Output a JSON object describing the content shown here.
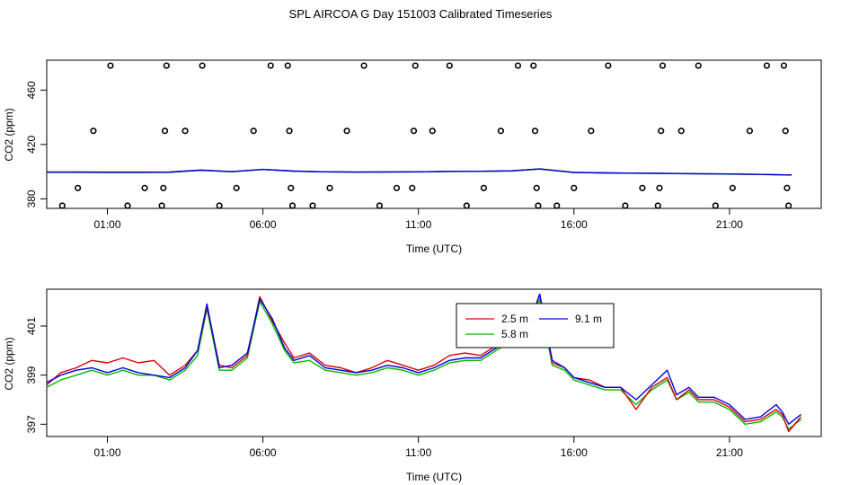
{
  "page": {
    "title": "SPL AIRCOA G  Day 151003  Calibrated Timeseries"
  },
  "chart_data": [
    {
      "type": "scatter",
      "title": "",
      "xlabel": "Time (UTC)",
      "ylabel": "CO2 (ppm)",
      "xlim": [
        -0.95,
        23.95
      ],
      "ylim": [
        373,
        482
      ],
      "x_ticks": [
        1,
        6,
        11,
        16,
        21
      ],
      "x_tick_labels": [
        "01:00",
        "06:00",
        "11:00",
        "16:00",
        "21:00"
      ],
      "y_ticks": [
        380,
        420,
        460
      ],
      "y_tick_labels": [
        "380",
        "420",
        "460"
      ],
      "colors": {
        "points": "#000000",
        "line_red": "#dd0000",
        "line_green": "#00bb00",
        "line_blue": "#0000dd"
      },
      "calibration_points": [
        {
          "x": -0.45,
          "y": 375
        },
        {
          "x": 0.05,
          "y": 388
        },
        {
          "x": 0.55,
          "y": 430
        },
        {
          "x": 1.1,
          "y": 478
        },
        {
          "x": 1.65,
          "y": 375
        },
        {
          "x": 2.2,
          "y": 388
        },
        {
          "x": 2.75,
          "y": 375
        },
        {
          "x": 2.8,
          "y": 388
        },
        {
          "x": 2.85,
          "y": 430
        },
        {
          "x": 2.9,
          "y": 478
        },
        {
          "x": 3.5,
          "y": 430
        },
        {
          "x": 4.05,
          "y": 478
        },
        {
          "x": 4.6,
          "y": 375
        },
        {
          "x": 5.15,
          "y": 388
        },
        {
          "x": 5.7,
          "y": 430
        },
        {
          "x": 6.25,
          "y": 478
        },
        {
          "x": 6.8,
          "y": 478
        },
        {
          "x": 6.85,
          "y": 430
        },
        {
          "x": 6.9,
          "y": 388
        },
        {
          "x": 6.95,
          "y": 375
        },
        {
          "x": 7.6,
          "y": 375
        },
        {
          "x": 8.15,
          "y": 388
        },
        {
          "x": 8.7,
          "y": 430
        },
        {
          "x": 9.25,
          "y": 478
        },
        {
          "x": 9.75,
          "y": 375
        },
        {
          "x": 10.3,
          "y": 388
        },
        {
          "x": 10.8,
          "y": 388
        },
        {
          "x": 10.85,
          "y": 430
        },
        {
          "x": 10.9,
          "y": 478
        },
        {
          "x": 11.45,
          "y": 430
        },
        {
          "x": 12.0,
          "y": 478
        },
        {
          "x": 12.55,
          "y": 375
        },
        {
          "x": 13.1,
          "y": 388
        },
        {
          "x": 13.65,
          "y": 430
        },
        {
          "x": 14.2,
          "y": 478
        },
        {
          "x": 14.7,
          "y": 478
        },
        {
          "x": 14.75,
          "y": 430
        },
        {
          "x": 14.8,
          "y": 388
        },
        {
          "x": 14.85,
          "y": 375
        },
        {
          "x": 15.45,
          "y": 375
        },
        {
          "x": 16.0,
          "y": 388
        },
        {
          "x": 16.55,
          "y": 430
        },
        {
          "x": 17.1,
          "y": 478
        },
        {
          "x": 17.65,
          "y": 375
        },
        {
          "x": 18.2,
          "y": 388
        },
        {
          "x": 18.7,
          "y": 375
        },
        {
          "x": 18.75,
          "y": 388
        },
        {
          "x": 18.8,
          "y": 430
        },
        {
          "x": 18.85,
          "y": 478
        },
        {
          "x": 19.45,
          "y": 430
        },
        {
          "x": 20.0,
          "y": 478
        },
        {
          "x": 20.55,
          "y": 375
        },
        {
          "x": 21.1,
          "y": 388
        },
        {
          "x": 21.65,
          "y": 430
        },
        {
          "x": 22.2,
          "y": 478
        },
        {
          "x": 22.75,
          "y": 478
        },
        {
          "x": 22.8,
          "y": 430
        },
        {
          "x": 22.85,
          "y": 388
        },
        {
          "x": 22.9,
          "y": 375
        }
      ],
      "series": [
        {
          "color": "red",
          "x": [
            -0.95,
            0,
            1,
            2,
            3,
            4,
            5,
            6,
            7,
            8,
            9,
            10,
            11,
            12,
            13,
            14,
            14.9,
            16,
            17,
            18,
            19,
            20,
            21,
            22,
            23
          ],
          "values": [
            399.8,
            399.8,
            399.7,
            399.7,
            399.8,
            401.2,
            400.0,
            401.6,
            400.4,
            399.9,
            399.7,
            399.8,
            399.9,
            400.2,
            400.3,
            400.6,
            402.0,
            399.4,
            399.1,
            398.9,
            398.7,
            398.5,
            398.3,
            398.0,
            397.6
          ]
        },
        {
          "color": "green",
          "x": [
            -0.95,
            0,
            1,
            2,
            3,
            4,
            5,
            6,
            7,
            8,
            9,
            10,
            11,
            12,
            13,
            14,
            14.9,
            16,
            17,
            18,
            19,
            20,
            21,
            22,
            23
          ],
          "values": [
            399.5,
            399.5,
            399.4,
            399.4,
            399.5,
            401.0,
            399.9,
            401.6,
            400.3,
            399.8,
            399.6,
            399.7,
            399.8,
            400.1,
            400.2,
            400.5,
            401.9,
            399.3,
            399.0,
            398.8,
            398.6,
            398.4,
            398.2,
            397.9,
            397.5
          ]
        },
        {
          "color": "blue",
          "x": [
            -0.95,
            0,
            1,
            2,
            3,
            4,
            5,
            6,
            7,
            8,
            9,
            10,
            11,
            12,
            13,
            14,
            14.9,
            16,
            17,
            18,
            19,
            20,
            21,
            22,
            23
          ],
          "values": [
            399.6,
            399.6,
            399.5,
            399.5,
            399.6,
            401.1,
            400.0,
            401.7,
            400.4,
            399.9,
            399.7,
            399.8,
            399.9,
            400.2,
            400.3,
            400.6,
            402.0,
            399.4,
            399.1,
            398.9,
            398.7,
            398.5,
            398.3,
            398.0,
            397.6
          ]
        }
      ]
    },
    {
      "type": "line",
      "title": "",
      "xlabel": "Time (UTC)",
      "ylabel": "CO2 (ppm)",
      "xlim": [
        -0.95,
        23.95
      ],
      "ylim": [
        396.5,
        402.5
      ],
      "x_ticks": [
        1,
        6,
        11,
        16,
        21
      ],
      "x_tick_labels": [
        "01:00",
        "06:00",
        "11:00",
        "16:00",
        "21:00"
      ],
      "y_ticks": [
        397,
        399,
        401
      ],
      "y_tick_labels": [
        "397",
        "399",
        "401"
      ],
      "legend_position": "top-center",
      "series": [
        {
          "name": "2.5 m",
          "color": "#dd0000",
          "x": [
            -0.95,
            -0.5,
            0,
            0.5,
            1,
            1.5,
            2,
            2.5,
            3,
            3.5,
            3.9,
            4.2,
            4.6,
            5,
            5.5,
            5.9,
            6.3,
            6.7,
            7,
            7.5,
            8,
            8.5,
            9,
            9.5,
            10,
            10.5,
            11,
            11.5,
            12,
            12.5,
            13,
            13.5,
            14,
            14.5,
            14.9,
            15.3,
            15.7,
            16,
            16.5,
            17,
            17.5,
            18,
            18.5,
            19,
            19.3,
            19.7,
            20,
            20.5,
            21,
            21.5,
            22,
            22.5,
            22.7,
            22.9,
            23.3
          ],
          "values": [
            398.6,
            399.1,
            399.3,
            399.6,
            399.5,
            399.7,
            399.5,
            399.6,
            399.0,
            399.4,
            400.0,
            401.8,
            399.4,
            399.3,
            399.8,
            402.2,
            401.2,
            400.3,
            399.7,
            399.9,
            399.4,
            399.3,
            399.1,
            399.3,
            399.6,
            399.4,
            399.2,
            399.4,
            399.8,
            399.9,
            399.8,
            400.2,
            400.6,
            400.9,
            402.3,
            399.5,
            399.3,
            398.9,
            398.8,
            398.5,
            398.5,
            397.6,
            398.5,
            398.9,
            398.0,
            398.4,
            398.0,
            398.0,
            397.7,
            397.1,
            397.2,
            397.6,
            397.4,
            396.7,
            397.3
          ]
        },
        {
          "name": "5.8 m",
          "color": "#00bb00",
          "x": [
            -0.95,
            -0.5,
            0,
            0.5,
            1,
            1.5,
            2,
            2.5,
            3,
            3.5,
            3.9,
            4.2,
            4.6,
            5,
            5.5,
            5.9,
            6.3,
            6.7,
            7,
            7.5,
            8,
            8.5,
            9,
            9.5,
            10,
            10.5,
            11,
            11.5,
            12,
            12.5,
            13,
            13.5,
            14,
            14.5,
            14.9,
            15.3,
            15.7,
            16,
            16.5,
            17,
            17.5,
            18,
            18.5,
            19,
            19.3,
            19.7,
            20,
            20.5,
            21,
            21.5,
            22,
            22.5,
            22.7,
            22.9,
            23.3
          ],
          "values": [
            398.5,
            398.8,
            399.0,
            399.2,
            399.0,
            399.2,
            399.0,
            399.0,
            398.8,
            399.2,
            399.8,
            401.7,
            399.2,
            399.2,
            399.7,
            402.0,
            401.1,
            400.0,
            399.5,
            399.6,
            399.2,
            399.1,
            399.0,
            399.1,
            399.3,
            399.2,
            399.0,
            399.2,
            399.5,
            399.6,
            399.6,
            400.0,
            400.4,
            400.7,
            402.1,
            399.4,
            399.2,
            398.8,
            398.6,
            398.4,
            398.4,
            397.8,
            398.4,
            398.8,
            398.0,
            398.3,
            397.9,
            397.9,
            397.6,
            397.0,
            397.1,
            397.5,
            397.3,
            396.8,
            397.2
          ]
        },
        {
          "name": "9.1 m",
          "color": "#0000dd",
          "x": [
            -0.95,
            -0.5,
            0,
            0.5,
            1,
            1.5,
            2,
            2.5,
            3,
            3.5,
            3.9,
            4.2,
            4.6,
            5,
            5.5,
            5.9,
            6.3,
            6.7,
            7,
            7.5,
            8,
            8.5,
            9,
            9.5,
            10,
            10.5,
            11,
            11.5,
            12,
            12.5,
            13,
            13.5,
            14,
            14.5,
            14.9,
            15.3,
            15.7,
            16,
            16.5,
            17,
            17.5,
            18,
            18.5,
            19,
            19.3,
            19.7,
            20,
            20.5,
            21,
            21.5,
            22,
            22.5,
            22.7,
            22.9,
            23.3
          ],
          "values": [
            398.7,
            399.0,
            399.2,
            399.3,
            399.1,
            399.3,
            399.1,
            399.0,
            398.9,
            399.3,
            400.0,
            401.9,
            399.3,
            399.4,
            399.9,
            402.1,
            401.3,
            400.1,
            399.6,
            399.8,
            399.3,
            399.2,
            399.1,
            399.2,
            399.4,
            399.3,
            399.1,
            399.3,
            399.6,
            399.7,
            399.7,
            400.1,
            400.5,
            400.8,
            402.3,
            399.6,
            399.3,
            398.9,
            398.7,
            398.5,
            398.5,
            398.0,
            398.6,
            399.2,
            398.2,
            398.5,
            398.1,
            398.1,
            397.8,
            397.2,
            397.3,
            397.8,
            397.5,
            397.0,
            397.4
          ]
        }
      ]
    }
  ]
}
